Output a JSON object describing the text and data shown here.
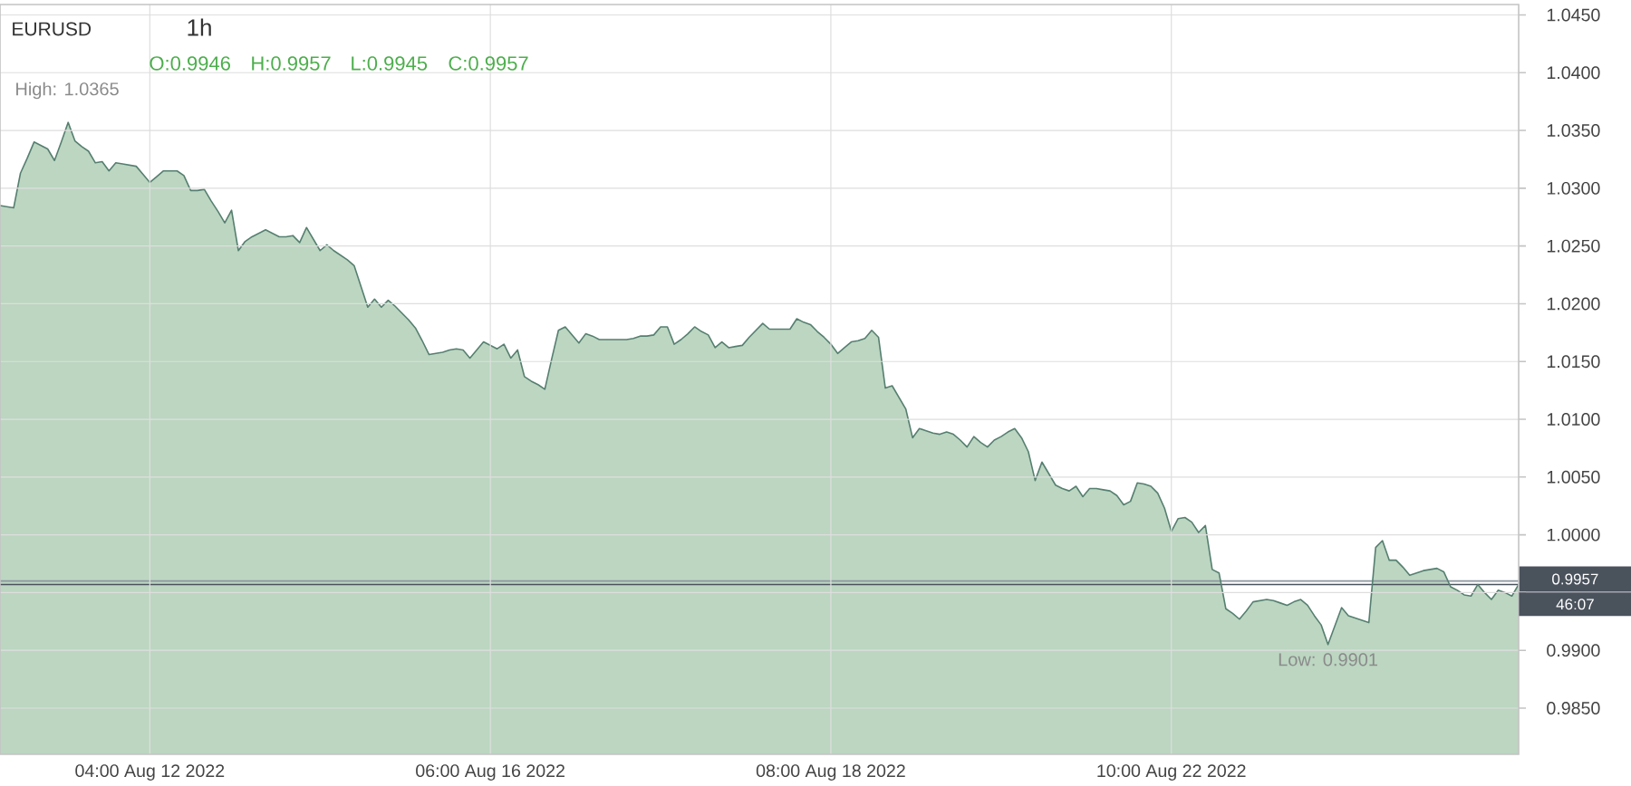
{
  "chart_data": {
    "type": "area",
    "title": "EURUSD",
    "categories": [
      null,
      null,
      null,
      null,
      null,
      null,
      null,
      null,
      null,
      null,
      null,
      null,
      null,
      null,
      null,
      null,
      null,
      null,
      null,
      null,
      null,
      null,
      "04:00 Aug 12 2022",
      null,
      null,
      null,
      null,
      null,
      null,
      null,
      null,
      null,
      null,
      null,
      null,
      null,
      null,
      null,
      null,
      null,
      null,
      null,
      null,
      null,
      null,
      null,
      null,
      null,
      null,
      null,
      null,
      null,
      null,
      null,
      null,
      null,
      null,
      null,
      null,
      null,
      null,
      null,
      null,
      null,
      null,
      null,
      null,
      null,
      null,
      null,
      null,
      null,
      "06:00 Aug 16 2022",
      null,
      null,
      null,
      null,
      null,
      null,
      null,
      null,
      null,
      null,
      null,
      null,
      null,
      null,
      null,
      null,
      null,
      null,
      null,
      null,
      null,
      null,
      null,
      null,
      null,
      null,
      null,
      null,
      null,
      null,
      null,
      null,
      null,
      null,
      null,
      null,
      null,
      null,
      null,
      null,
      null,
      null,
      null,
      null,
      null,
      null,
      null,
      null,
      null,
      "08:00 Aug 18 2022",
      null,
      null,
      null,
      null,
      null,
      null,
      null,
      null,
      null,
      null,
      null,
      null,
      null,
      null,
      null,
      null,
      null,
      null,
      null,
      null,
      null,
      null,
      null,
      null,
      null,
      null,
      null,
      null,
      null,
      null,
      null,
      null,
      null,
      null,
      null,
      null,
      null,
      null,
      null,
      null,
      null,
      null,
      null,
      null,
      null,
      null,
      null,
      null,
      null,
      "10:00 Aug 22 2022",
      null,
      null,
      null,
      null,
      null,
      null,
      null,
      null,
      null,
      null,
      null,
      null,
      null,
      null,
      null,
      null,
      null,
      null,
      null,
      null,
      null,
      null,
      null,
      null,
      null,
      null,
      null,
      null,
      null,
      null,
      null,
      null,
      null,
      null,
      null,
      null,
      null,
      null,
      null,
      null,
      null,
      null,
      null,
      null,
      null,
      null,
      null,
      null,
      null,
      null,
      null
    ],
    "values": [
      1.0285,
      1.0284,
      1.0283,
      1.0313,
      1.0326,
      1.034,
      1.0337,
      1.0334,
      1.0324,
      1.034,
      1.0357,
      1.0341,
      1.0336,
      1.0332,
      1.0322,
      1.0323,
      1.0315,
      1.0322,
      1.0321,
      1.032,
      1.0319,
      1.0312,
      1.0305,
      1.031,
      1.0315,
      1.0315,
      1.0315,
      1.0311,
      1.0298,
      1.0298,
      1.0299,
      1.0289,
      1.028,
      1.027,
      1.0281,
      1.0246,
      1.0254,
      1.0258,
      1.0261,
      1.0264,
      1.0261,
      1.0258,
      1.0258,
      1.0259,
      1.0253,
      1.0266,
      1.0256,
      1.0246,
      1.0251,
      1.0246,
      1.0242,
      1.0238,
      1.0233,
      1.0215,
      1.0197,
      1.0204,
      1.0197,
      1.0203,
      1.0198,
      1.0192,
      1.0186,
      1.0179,
      1.0168,
      1.0156,
      1.0157,
      1.0158,
      1.016,
      1.0161,
      1.016,
      1.0153,
      1.016,
      1.0167,
      1.0164,
      1.0161,
      1.0165,
      1.0153,
      1.016,
      1.0137,
      1.0133,
      1.013,
      1.0126,
      1.0152,
      1.0177,
      1.018,
      1.0173,
      1.0166,
      1.0174,
      1.0172,
      1.0169,
      1.0169,
      1.0169,
      1.0169,
      1.0169,
      1.017,
      1.0172,
      1.0172,
      1.0173,
      1.018,
      1.018,
      1.0165,
      1.0169,
      1.0174,
      1.018,
      1.0176,
      1.0173,
      1.0162,
      1.0167,
      1.0162,
      1.0163,
      1.0164,
      1.0171,
      1.0177,
      1.0183,
      1.0178,
      1.0178,
      1.0178,
      1.0178,
      1.0187,
      1.0184,
      1.0182,
      1.0176,
      1.0171,
      1.0165,
      1.0157,
      1.0162,
      1.0167,
      1.0168,
      1.017,
      1.0177,
      1.0171,
      1.0127,
      1.0129,
      1.0119,
      1.0109,
      1.0084,
      1.0092,
      1.009,
      1.0088,
      1.0087,
      1.0089,
      1.0087,
      1.0082,
      1.0076,
      1.0085,
      1.008,
      1.0076,
      1.0082,
      1.0085,
      1.0089,
      1.0092,
      1.0084,
      1.0072,
      1.0047,
      1.0063,
      1.0053,
      1.0043,
      1.004,
      1.0038,
      1.0042,
      1.0033,
      1.004,
      1.004,
      1.0039,
      1.0038,
      1.0034,
      1.0026,
      1.0029,
      1.0045,
      1.0044,
      1.0042,
      1.0036,
      1.0023,
      1.0003,
      1.0014,
      1.0015,
      1.0011,
      1.0002,
      1.0008,
      0.997,
      0.9967,
      0.9936,
      0.9932,
      0.9927,
      0.9934,
      0.9942,
      0.9943,
      0.9944,
      0.9943,
      0.9941,
      0.9939,
      0.9942,
      0.9944,
      0.9939,
      0.993,
      0.9922,
      0.9905,
      0.9921,
      0.9937,
      0.993,
      0.9928,
      0.9926,
      0.9924,
      0.9989,
      0.9995,
      0.9978,
      0.9978,
      0.9972,
      0.9965,
      0.9967,
      0.9969,
      0.997,
      0.9971,
      0.9968,
      0.9955,
      0.9952,
      0.9948,
      0.9947,
      0.9957,
      0.995,
      0.9944,
      0.9952,
      0.995,
      0.9947,
      0.9957
    ],
    "color": "#bcd6c1",
    "ylim": [
      0.981,
      1.0459
    ],
    "yticks": [
      {
        "value": 0.985,
        "label": "0.9850"
      },
      {
        "value": 0.99,
        "label": "0.9900"
      },
      {
        "value": 0.995,
        "label": null
      },
      {
        "value": 1.0,
        "label": "1.0000"
      },
      {
        "value": 1.005,
        "label": "1.0050"
      },
      {
        "value": 1.01,
        "label": "1.0100"
      },
      {
        "value": 1.015,
        "label": "1.0150"
      },
      {
        "value": 1.02,
        "label": "1.0200"
      },
      {
        "value": 1.025,
        "label": "1.0250"
      },
      {
        "value": 1.03,
        "label": "1.0300"
      },
      {
        "value": 1.035,
        "label": "1.0350"
      },
      {
        "value": 1.04,
        "label": "1.0400"
      },
      {
        "value": 1.045,
        "label": "1.0450"
      }
    ],
    "grid": true,
    "ref_lines": [
      {
        "axis": "y",
        "value": 0.996,
        "color": "#8d959e"
      },
      {
        "axis": "y",
        "value": 0.9957,
        "label": "0.9957",
        "color": "#4a525c"
      }
    ],
    "annotations": [
      "1h",
      "O:0.9946",
      "H:0.9957",
      "L:0.9945",
      "C:0.9957",
      "High: 1.0365",
      {
        "text": "Low: 0.9901",
        "y": 0.9901
      },
      "46:07"
    ]
  }
}
